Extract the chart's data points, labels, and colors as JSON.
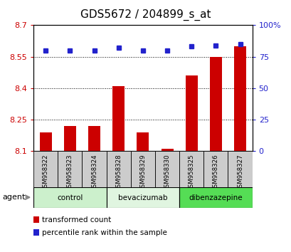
{
  "title": "GDS5672 / 204899_s_at",
  "samples": [
    "GSM958322",
    "GSM958323",
    "GSM958324",
    "GSM958328",
    "GSM958329",
    "GSM958330",
    "GSM958325",
    "GSM958326",
    "GSM958327"
  ],
  "bar_values": [
    8.19,
    8.22,
    8.22,
    8.41,
    8.19,
    8.11,
    8.46,
    8.55,
    8.6
  ],
  "percentile_values": [
    80,
    80,
    80,
    82,
    80,
    80,
    83,
    84,
    85
  ],
  "bar_color": "#cc0000",
  "dot_color": "#2222cc",
  "ylim_left": [
    8.1,
    8.7
  ],
  "ylim_right": [
    0,
    100
  ],
  "yticks_left": [
    8.1,
    8.25,
    8.4,
    8.55,
    8.7
  ],
  "yticks_right": [
    0,
    25,
    50,
    75,
    100
  ],
  "ytick_labels_left": [
    "8.1",
    "8.25",
    "8.4",
    "8.55",
    "8.7"
  ],
  "ytick_labels_right": [
    "0",
    "25",
    "50",
    "75",
    "100%"
  ],
  "groups": [
    {
      "label": "control",
      "indices": [
        0,
        1,
        2
      ],
      "color": "#ccf0cc"
    },
    {
      "label": "bevacizumab",
      "indices": [
        3,
        4,
        5
      ],
      "color": "#e0f5e0"
    },
    {
      "label": "dibenzazepine",
      "indices": [
        6,
        7,
        8
      ],
      "color": "#55dd55"
    }
  ],
  "agent_label": "agent",
  "legend_bar_label": "transformed count",
  "legend_dot_label": "percentile rank within the sample",
  "title_fontsize": 11,
  "tick_fontsize": 8,
  "bar_width": 0.5,
  "base_value": 8.1
}
